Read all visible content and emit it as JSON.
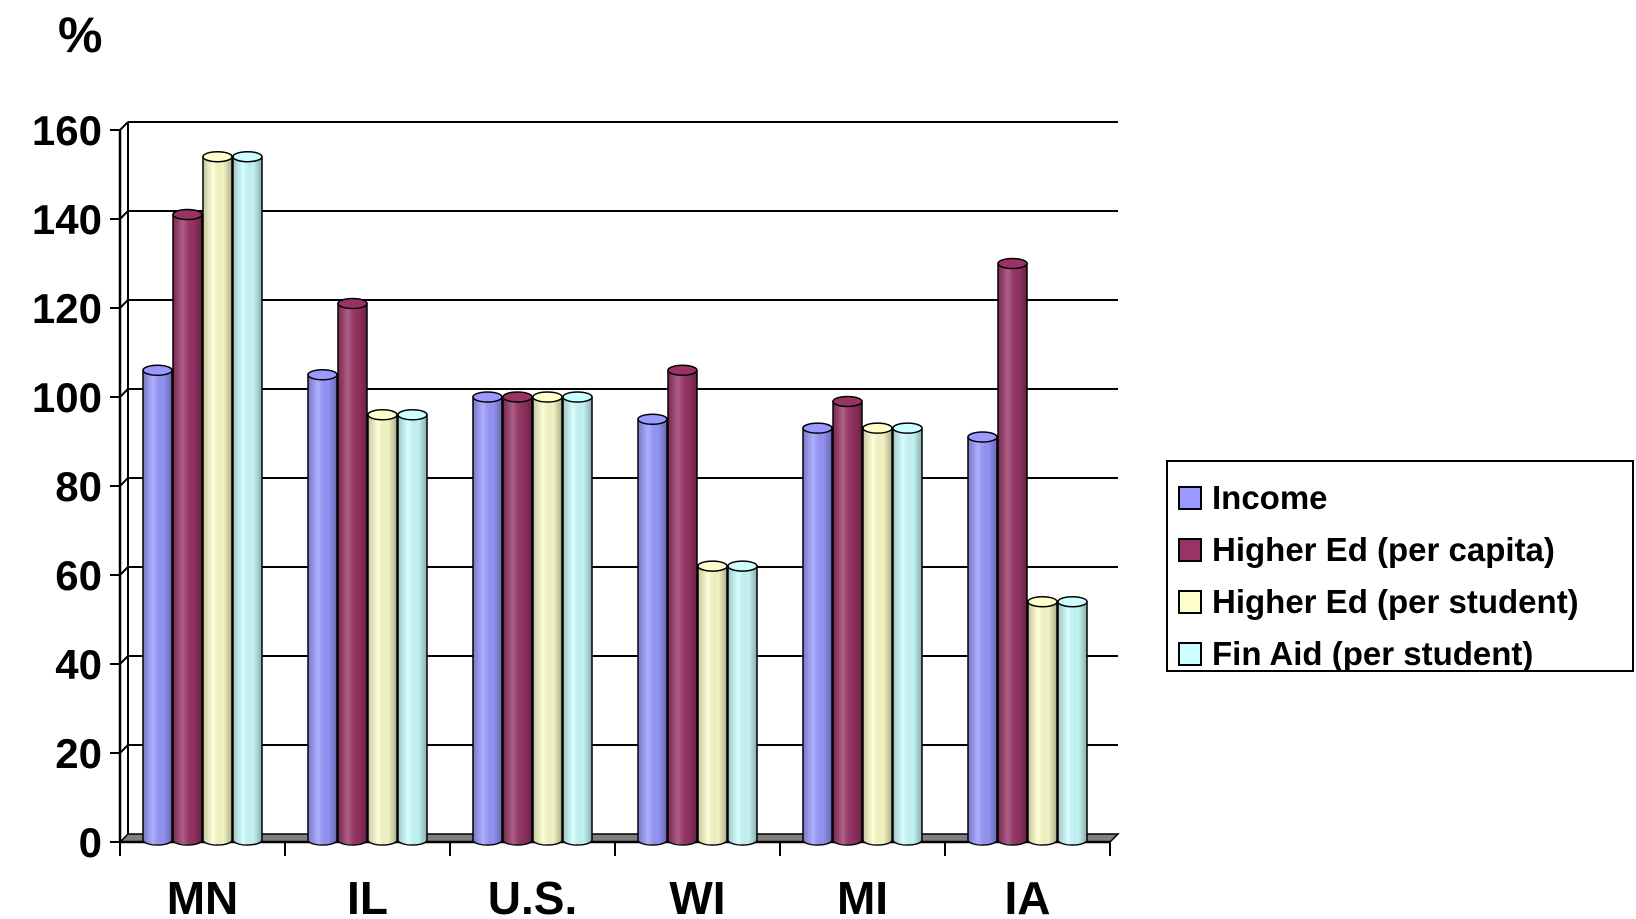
{
  "chart_data": {
    "type": "bar",
    "unit_label": "%",
    "categories": [
      "MN",
      "IL",
      "U.S.",
      "WI",
      "MI",
      "IA"
    ],
    "series": [
      {
        "name": "Income",
        "color": "#9999FF",
        "values": [
          106,
          105,
          100,
          95,
          93,
          91
        ]
      },
      {
        "name": "Higher Ed (per capita)",
        "color": "#993366",
        "values": [
          141,
          121,
          100,
          106,
          99,
          130
        ]
      },
      {
        "name": "Higher Ed (per student)",
        "color": "#FFFFCC",
        "values": [
          154,
          96,
          100,
          62,
          93,
          54
        ]
      },
      {
        "name": "Fin Aid (per student)",
        "color": "#CCFFFF",
        "values": [
          154,
          96,
          100,
          62,
          93,
          54
        ]
      }
    ],
    "ylim": [
      0,
      160
    ],
    "yticks": [
      0,
      20,
      40,
      60,
      80,
      100,
      120,
      140,
      160
    ],
    "grid": true,
    "legend_position": "right"
  }
}
